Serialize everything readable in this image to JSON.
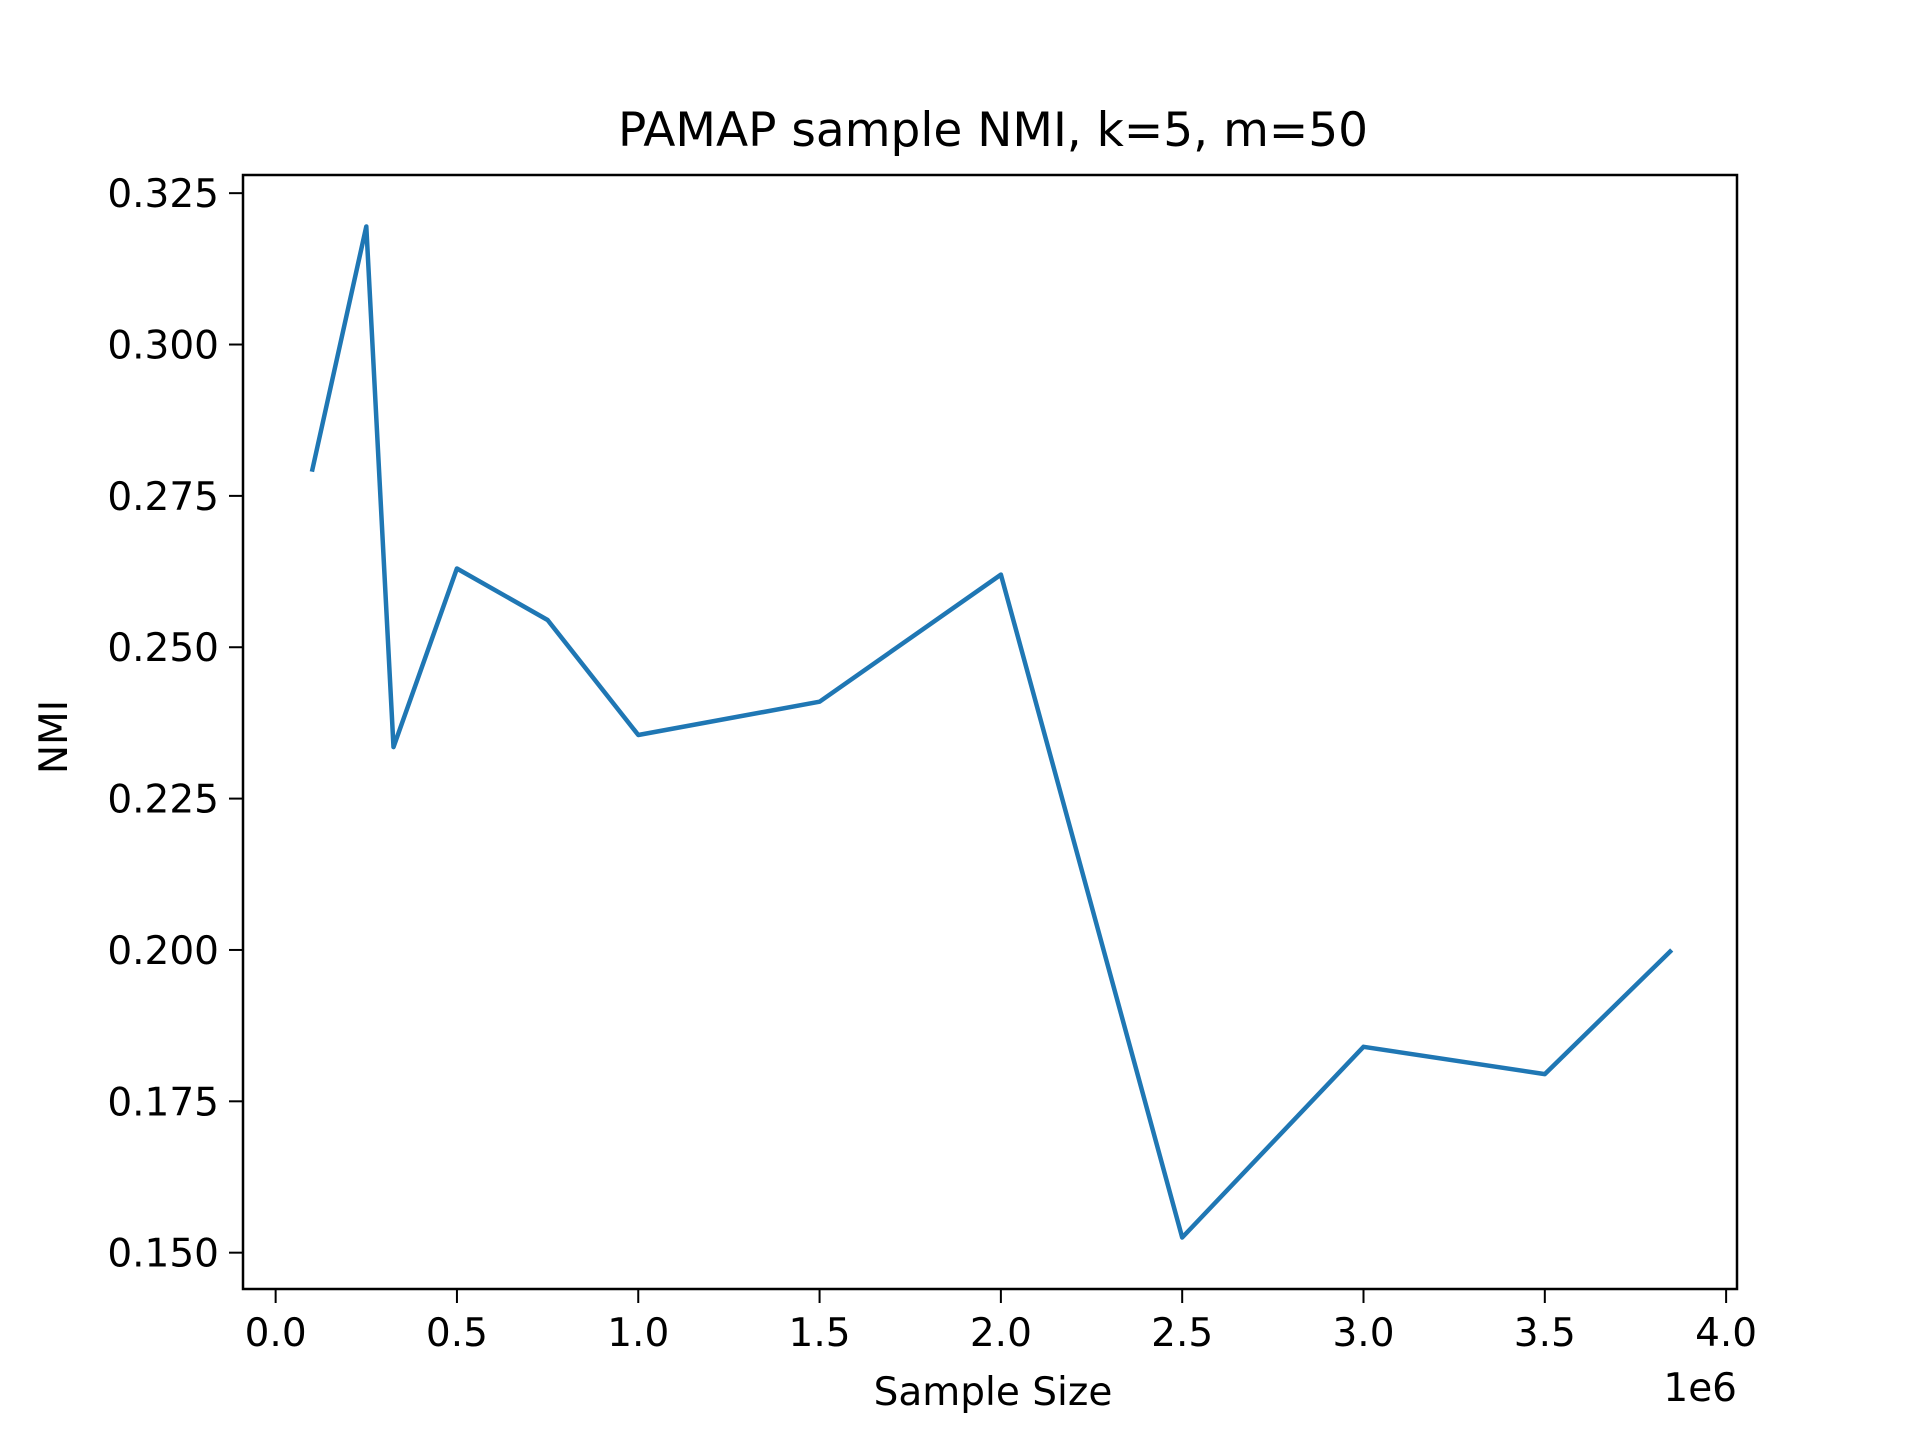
{
  "chart_data": {
    "type": "line",
    "title": "PAMAP sample NMI, k=5, m=50",
    "xlabel": "Sample Size",
    "ylabel": "NMI",
    "x_offset_text": "1e6",
    "xlim": [
      -0.09,
      4.03
    ],
    "ylim": [
      0.144,
      0.328
    ],
    "xticks": [
      0.0,
      0.5,
      1.0,
      1.5,
      2.0,
      2.5,
      3.0,
      3.5,
      4.0
    ],
    "xtick_labels": [
      "0.0",
      "0.5",
      "1.0",
      "1.5",
      "2.0",
      "2.5",
      "3.0",
      "3.5",
      "4.0"
    ],
    "yticks": [
      0.15,
      0.175,
      0.2,
      0.225,
      0.25,
      0.275,
      0.3,
      0.325
    ],
    "ytick_labels": [
      "0.150",
      "0.175",
      "0.200",
      "0.225",
      "0.250",
      "0.275",
      "0.300",
      "0.325"
    ],
    "grid": false,
    "series": [
      {
        "color": "#1f77b4",
        "x": [
          0.1,
          0.25,
          0.325,
          0.5,
          0.75,
          1.0,
          1.5,
          2.0,
          2.5,
          3.0,
          3.5,
          3.85
        ],
        "y": [
          0.279,
          0.3195,
          0.2335,
          0.263,
          0.2545,
          0.2355,
          0.241,
          0.262,
          0.1525,
          0.184,
          0.1795,
          0.2
        ]
      }
    ]
  }
}
